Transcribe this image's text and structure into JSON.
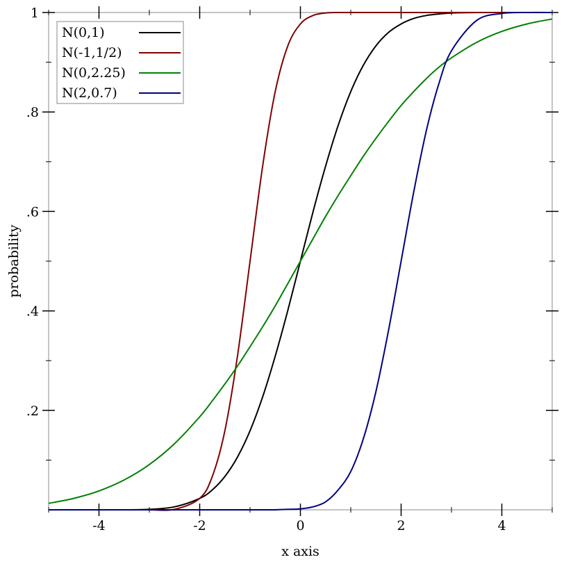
{
  "chart_data": {
    "type": "line",
    "title": "",
    "xlabel": "x axis",
    "ylabel": "probability",
    "xlim": [
      -5,
      5
    ],
    "ylim": [
      0,
      1
    ],
    "grid": false,
    "legend_position": "top-left",
    "x_ticks": [
      {
        "value": -4,
        "label": "-4"
      },
      {
        "value": -2,
        "label": "-2"
      },
      {
        "value": 0,
        "label": "0"
      },
      {
        "value": 2,
        "label": "2"
      },
      {
        "value": 4,
        "label": "4"
      }
    ],
    "x_minor_ticks": [
      -5,
      -3,
      -1,
      1,
      3,
      5
    ],
    "y_ticks": [
      {
        "value": 0.2,
        "label": ".2"
      },
      {
        "value": 0.4,
        "label": ".4"
      },
      {
        "value": 0.6,
        "label": ".6"
      },
      {
        "value": 0.8,
        "label": ".8"
      },
      {
        "value": 1.0,
        "label": "1"
      }
    ],
    "y_minor_ticks": [
      0.1,
      0.3,
      0.5,
      0.7,
      0.9
    ],
    "x": [
      -5,
      -4.5,
      -4,
      -3.5,
      -3,
      -2.5,
      -2,
      -1.75,
      -1.5,
      -1.25,
      -1,
      -0.75,
      -0.5,
      -0.25,
      0,
      0.25,
      0.5,
      0.75,
      1,
      1.25,
      1.5,
      1.75,
      2,
      2.25,
      2.5,
      2.75,
      3,
      3.5,
      4,
      4.5,
      5
    ],
    "series": [
      {
        "name": "N(0,1)",
        "color": "#000000",
        "values": [
          0.0,
          0.0,
          0.0,
          0.0,
          0.001,
          0.006,
          0.023,
          0.04,
          0.067,
          0.106,
          0.159,
          0.227,
          0.309,
          0.401,
          0.5,
          0.599,
          0.691,
          0.773,
          0.841,
          0.894,
          0.933,
          0.96,
          0.977,
          0.988,
          0.994,
          0.997,
          0.999,
          1.0,
          1.0,
          1.0,
          1.0
        ]
      },
      {
        "name": "N(-1,1/2)",
        "color": "#7f0000",
        "values": [
          0.0,
          0.0,
          0.0,
          0.0,
          0.0,
          0.001,
          0.023,
          0.067,
          0.159,
          0.309,
          0.5,
          0.691,
          0.841,
          0.933,
          0.977,
          0.994,
          0.999,
          1.0,
          1.0,
          1.0,
          1.0,
          1.0,
          1.0,
          1.0,
          1.0,
          1.0,
          1.0,
          1.0,
          1.0,
          1.0,
          1.0
        ]
      },
      {
        "name": "N(0,2.25)",
        "color": "#008000",
        "values": [
          0.013,
          0.023,
          0.038,
          0.06,
          0.091,
          0.133,
          0.187,
          0.219,
          0.253,
          0.289,
          0.328,
          0.368,
          0.41,
          0.455,
          0.5,
          0.545,
          0.59,
          0.632,
          0.672,
          0.711,
          0.747,
          0.781,
          0.813,
          0.841,
          0.867,
          0.89,
          0.909,
          0.94,
          0.962,
          0.977,
          0.987
        ]
      },
      {
        "name": "N(2,0.7)",
        "color": "#00007f",
        "values": [
          0.0,
          0.0,
          0.0,
          0.0,
          0.0,
          0.0,
          0.0,
          0.0,
          0.0,
          0.0,
          0.0,
          0.0,
          0.0,
          0.001,
          0.002,
          0.006,
          0.016,
          0.04,
          0.077,
          0.143,
          0.238,
          0.361,
          0.5,
          0.639,
          0.762,
          0.857,
          0.923,
          0.984,
          0.998,
          1.0,
          1.0
        ]
      }
    ]
  }
}
